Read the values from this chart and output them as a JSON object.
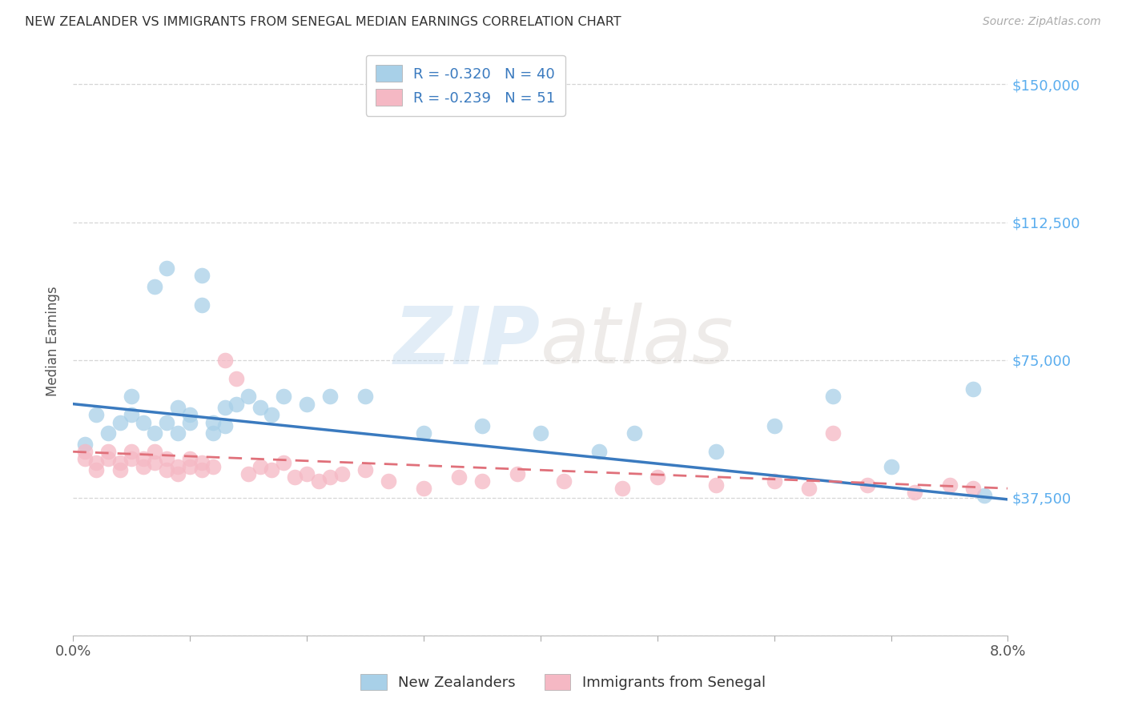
{
  "title": "NEW ZEALANDER VS IMMIGRANTS FROM SENEGAL MEDIAN EARNINGS CORRELATION CHART",
  "source": "Source: ZipAtlas.com",
  "ylabel": "Median Earnings",
  "yticks": [
    0,
    37500,
    75000,
    112500,
    150000
  ],
  "xlim": [
    0.0,
    0.08
  ],
  "ylim": [
    0,
    160000
  ],
  "legend_r1": "R = -0.320",
  "legend_n1": "N = 40",
  "legend_r2": "R = -0.239",
  "legend_n2": "N = 51",
  "legend_label1": "New Zealanders",
  "legend_label2": "Immigrants from Senegal",
  "blue_color": "#a8d0e8",
  "pink_color": "#f5b8c4",
  "blue_line_color": "#3a7abf",
  "pink_line_color": "#e0707a",
  "watermark_zip": "ZIP",
  "watermark_atlas": "atlas",
  "nz_x": [
    0.001,
    0.002,
    0.003,
    0.004,
    0.005,
    0.005,
    0.006,
    0.007,
    0.007,
    0.008,
    0.008,
    0.009,
    0.009,
    0.01,
    0.01,
    0.011,
    0.011,
    0.012,
    0.012,
    0.013,
    0.013,
    0.014,
    0.015,
    0.016,
    0.017,
    0.018,
    0.02,
    0.022,
    0.025,
    0.03,
    0.035,
    0.04,
    0.045,
    0.048,
    0.055,
    0.06,
    0.065,
    0.07,
    0.077,
    0.078
  ],
  "nz_y": [
    52000,
    60000,
    55000,
    58000,
    65000,
    60000,
    58000,
    95000,
    55000,
    100000,
    58000,
    62000,
    55000,
    60000,
    58000,
    98000,
    90000,
    55000,
    58000,
    62000,
    57000,
    63000,
    65000,
    62000,
    60000,
    65000,
    63000,
    65000,
    65000,
    55000,
    57000,
    55000,
    50000,
    55000,
    50000,
    57000,
    65000,
    46000,
    67000,
    38000
  ],
  "senegal_x": [
    0.001,
    0.001,
    0.002,
    0.002,
    0.003,
    0.003,
    0.004,
    0.004,
    0.005,
    0.005,
    0.006,
    0.006,
    0.007,
    0.007,
    0.008,
    0.008,
    0.009,
    0.009,
    0.01,
    0.01,
    0.011,
    0.011,
    0.012,
    0.013,
    0.014,
    0.015,
    0.016,
    0.017,
    0.018,
    0.019,
    0.02,
    0.021,
    0.022,
    0.023,
    0.025,
    0.027,
    0.03,
    0.033,
    0.035,
    0.038,
    0.042,
    0.047,
    0.05,
    0.055,
    0.06,
    0.063,
    0.065,
    0.068,
    0.072,
    0.075,
    0.077
  ],
  "senegal_y": [
    48000,
    50000,
    45000,
    47000,
    50000,
    48000,
    45000,
    47000,
    50000,
    48000,
    46000,
    48000,
    50000,
    47000,
    48000,
    45000,
    46000,
    44000,
    46000,
    48000,
    45000,
    47000,
    46000,
    75000,
    70000,
    44000,
    46000,
    45000,
    47000,
    43000,
    44000,
    42000,
    43000,
    44000,
    45000,
    42000,
    40000,
    43000,
    42000,
    44000,
    42000,
    40000,
    43000,
    41000,
    42000,
    40000,
    55000,
    41000,
    39000,
    41000,
    40000
  ]
}
